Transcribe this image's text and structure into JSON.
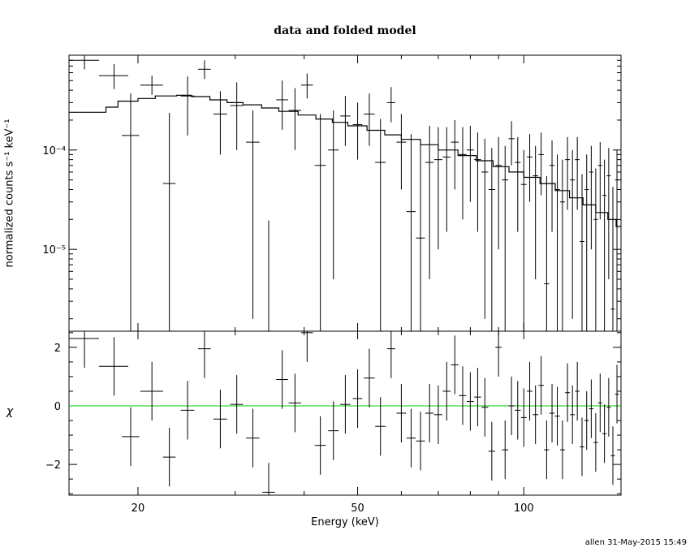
{
  "title": "data and folded model",
  "footer_stamp": "allen 31-May-2015 15:49",
  "chart_data": [
    {
      "type": "scatter",
      "panel": "top",
      "xlabel": "Energy (keV)",
      "ylabel": "normalized counts s⁻¹ keV⁻¹",
      "xscale": "log",
      "yscale": "log",
      "xlim": [
        15,
        150
      ],
      "ylim": [
        1.5e-06,
        0.0009
      ],
      "y_tick_labels": [
        {
          "text": "10⁻⁵",
          "value": 1e-05
        },
        {
          "text": "10⁻⁴",
          "value": 0.0001
        }
      ],
      "data": [
        {
          "e": 16.0,
          "de": 1.0,
          "y": 0.0008,
          "dy_lo": 0.00015,
          "dy_hi": 0.00015
        },
        {
          "e": 18.1,
          "de": 1.1,
          "y": 0.00056,
          "dy_lo": 0.00015,
          "dy_hi": 0.00017
        },
        {
          "e": 19.4,
          "de": 0.7,
          "y": 0.00014,
          "dy_lo": 0.0001385,
          "dy_hi": 0.00023
        },
        {
          "e": 21.2,
          "de": 1.0,
          "y": 0.00045,
          "dy_lo": 9e-05,
          "dy_hi": 0.00011
        },
        {
          "e": 22.8,
          "de": 0.6,
          "y": 4.6e-05,
          "dy_lo": 4.45e-05,
          "dy_hi": 0.00019
        },
        {
          "e": 24.6,
          "de": 0.7,
          "y": 0.00035,
          "dy_lo": 0.00021,
          "dy_hi": 0.0002
        },
        {
          "e": 26.4,
          "de": 0.7,
          "y": 0.00065,
          "dy_lo": 0.00013,
          "dy_hi": 0.00015
        },
        {
          "e": 28.2,
          "de": 0.8,
          "y": 0.00023,
          "dy_lo": 0.00014,
          "dy_hi": 0.00016
        },
        {
          "e": 30.2,
          "de": 0.8,
          "y": 0.00028,
          "dy_lo": 0.00018,
          "dy_hi": 0.0002
        },
        {
          "e": 32.3,
          "de": 0.9,
          "y": 0.00012,
          "dy_lo": 0.000118,
          "dy_hi": 0.00013
        },
        {
          "e": 34.5,
          "de": 0.9,
          "y": 1.5e-06,
          "dy_lo": 0,
          "dy_hi": 1.8e-05
        },
        {
          "e": 36.5,
          "de": 0.9,
          "y": 0.00032,
          "dy_lo": 0.00016,
          "dy_hi": 0.00018
        },
        {
          "e": 38.5,
          "de": 1.0,
          "y": 0.00025,
          "dy_lo": 0.00015,
          "dy_hi": 0.00017
        },
        {
          "e": 40.5,
          "de": 1.0,
          "y": 0.00045,
          "dy_lo": 0.00012,
          "dy_hi": 0.00014
        },
        {
          "e": 42.8,
          "de": 1.0,
          "y": 7e-05,
          "dy_lo": 6.9e-05,
          "dy_hi": 0.00016
        },
        {
          "e": 45.2,
          "de": 1.0,
          "y": 0.0001,
          "dy_lo": 9.5e-05,
          "dy_hi": 0.00015
        },
        {
          "e": 47.5,
          "de": 1.0,
          "y": 0.00022,
          "dy_lo": 0.00011,
          "dy_hi": 0.00013
        },
        {
          "e": 50.0,
          "de": 1.0,
          "y": 0.00018,
          "dy_lo": 0.0001,
          "dy_hi": 0.00012
        },
        {
          "e": 52.5,
          "de": 1.2,
          "y": 0.00023,
          "dy_lo": 0.00012,
          "dy_hi": 0.00014
        },
        {
          "e": 55.0,
          "de": 1.2,
          "y": 7.5e-05,
          "dy_lo": 7.4e-05,
          "dy_hi": 0.00013
        },
        {
          "e": 57.5,
          "de": 1.0,
          "y": 0.0003,
          "dy_lo": 0.00011,
          "dy_hi": 0.00013
        },
        {
          "e": 60.0,
          "de": 1.2,
          "y": 0.00012,
          "dy_lo": 8e-05,
          "dy_hi": 0.00011
        },
        {
          "e": 62.5,
          "de": 1.2,
          "y": 2.4e-05,
          "dy_lo": 2.39e-05,
          "dy_hi": 0.00012
        },
        {
          "e": 65.0,
          "de": 1.2,
          "y": 1.3e-05,
          "dy_lo": 1.29e-05,
          "dy_hi": 0.0001
        },
        {
          "e": 67.5,
          "de": 1.2,
          "y": 7.5e-05,
          "dy_lo": 7e-05,
          "dy_hi": 0.0001
        },
        {
          "e": 70.0,
          "de": 1.2,
          "y": 8e-05,
          "dy_lo": 7e-05,
          "dy_hi": 9e-05
        },
        {
          "e": 72.5,
          "de": 1.2,
          "y": 8.5e-05,
          "dy_lo": 7e-05,
          "dy_hi": 8.5e-05
        },
        {
          "e": 75.0,
          "de": 1.2,
          "y": 0.00012,
          "dy_lo": 8e-05,
          "dy_hi": 8e-05
        },
        {
          "e": 77.5,
          "de": 1.2,
          "y": 9e-05,
          "dy_lo": 7e-05,
          "dy_hi": 8e-05
        },
        {
          "e": 80.0,
          "de": 1.2,
          "y": 0.0001,
          "dy_lo": 7e-05,
          "dy_hi": 7.5e-05
        },
        {
          "e": 82.5,
          "de": 1.2,
          "y": 8e-05,
          "dy_lo": 6.5e-05,
          "dy_hi": 7e-05
        },
        {
          "e": 85.0,
          "de": 1.2,
          "y": 6e-05,
          "dy_lo": 5.8e-05,
          "dy_hi": 7e-05
        },
        {
          "e": 87.5,
          "de": 1.2,
          "y": 4e-05,
          "dy_lo": 3.99e-05,
          "dy_hi": 6.5e-05
        },
        {
          "e": 90.0,
          "de": 1.2,
          "y": 7e-05,
          "dy_lo": 6e-05,
          "dy_hi": 6.5e-05
        },
        {
          "e": 92.5,
          "de": 1.2,
          "y": 5e-05,
          "dy_lo": 4.9e-05,
          "dy_hi": 6e-05
        },
        {
          "e": 95.0,
          "de": 1.2,
          "y": 0.00013,
          "dy_lo": 6e-05,
          "dy_hi": 6.5e-05
        },
        {
          "e": 97.5,
          "de": 1.2,
          "y": 7.5e-05,
          "dy_lo": 6e-05,
          "dy_hi": 6e-05
        },
        {
          "e": 100.0,
          "de": 1.2,
          "y": 4.5e-05,
          "dy_lo": 4.4e-05,
          "dy_hi": 5.5e-05
        },
        {
          "e": 102.5,
          "de": 1.2,
          "y": 8.5e-05,
          "dy_lo": 5.5e-05,
          "dy_hi": 6e-05
        },
        {
          "e": 105.0,
          "de": 1.2,
          "y": 5.5e-05,
          "dy_lo": 5e-05,
          "dy_hi": 5.5e-05
        },
        {
          "e": 107.5,
          "de": 1.2,
          "y": 9e-05,
          "dy_lo": 5.5e-05,
          "dy_hi": 6e-05
        },
        {
          "e": 110.0,
          "de": 1.2,
          "y": 4.5e-06,
          "dy_lo": 0,
          "dy_hi": 5e-05
        },
        {
          "e": 112.5,
          "de": 1.2,
          "y": 7e-05,
          "dy_lo": 5.5e-05,
          "dy_hi": 5.5e-05
        },
        {
          "e": 115.0,
          "de": 1.2,
          "y": 4e-05,
          "dy_lo": 3.9e-05,
          "dy_hi": 5e-05
        },
        {
          "e": 117.5,
          "de": 1.2,
          "y": 3e-05,
          "dy_lo": 2.9e-05,
          "dy_hi": 5e-05
        },
        {
          "e": 120.0,
          "de": 1.2,
          "y": 8e-05,
          "dy_lo": 5.5e-05,
          "dy_hi": 5.5e-05
        },
        {
          "e": 122.5,
          "de": 1.2,
          "y": 5e-05,
          "dy_lo": 4.8e-05,
          "dy_hi": 5e-05
        },
        {
          "e": 125.0,
          "de": 1.2,
          "y": 8e-05,
          "dy_lo": 5.5e-05,
          "dy_hi": 5.5e-05
        },
        {
          "e": 127.5,
          "de": 1.2,
          "y": 1.2e-05,
          "dy_lo": 1.19e-05,
          "dy_hi": 4.5e-05
        },
        {
          "e": 130.0,
          "de": 1.2,
          "y": 4e-05,
          "dy_lo": 3.9e-05,
          "dy_hi": 5e-05
        },
        {
          "e": 132.5,
          "de": 1.2,
          "y": 6e-05,
          "dy_lo": 5e-05,
          "dy_hi": 5e-05
        },
        {
          "e": 135.0,
          "de": 1.2,
          "y": 2e-05,
          "dy_lo": 1.99e-05,
          "dy_hi": 4.5e-05
        },
        {
          "e": 137.5,
          "de": 1.2,
          "y": 7e-05,
          "dy_lo": 5e-05,
          "dy_hi": 5e-05
        },
        {
          "e": 140.0,
          "de": 1.2,
          "y": 3.5e-05,
          "dy_lo": 3.4e-05,
          "dy_hi": 4.5e-05
        },
        {
          "e": 142.5,
          "de": 1.2,
          "y": 5.5e-05,
          "dy_lo": 5e-05,
          "dy_hi": 5e-05
        },
        {
          "e": 145.0,
          "de": 1.2,
          "y": 2.5e-06,
          "dy_lo": 0,
          "dy_hi": 4e-05
        },
        {
          "e": 147.5,
          "de": 1.2,
          "y": 5e-05,
          "dy_lo": 4.9e-05,
          "dy_hi": 5e-05
        }
      ],
      "model_steps": [
        {
          "e": 15.0,
          "y": 0.00024
        },
        {
          "e": 17.0,
          "y": 0.00024
        },
        {
          "e": 17.5,
          "y": 0.00027
        },
        {
          "e": 18.4,
          "y": 0.00031
        },
        {
          "e": 20.0,
          "y": 0.00033
        },
        {
          "e": 21.5,
          "y": 0.00035
        },
        {
          "e": 23.5,
          "y": 0.000355
        },
        {
          "e": 25.0,
          "y": 0.000345
        },
        {
          "e": 27.0,
          "y": 0.00032
        },
        {
          "e": 29.0,
          "y": 0.0003
        },
        {
          "e": 31.0,
          "y": 0.000285
        },
        {
          "e": 33.5,
          "y": 0.000265
        },
        {
          "e": 36.0,
          "y": 0.000245
        },
        {
          "e": 39.0,
          "y": 0.000225
        },
        {
          "e": 42.0,
          "y": 0.000205
        },
        {
          "e": 45.0,
          "y": 0.00019
        },
        {
          "e": 48.0,
          "y": 0.000175
        },
        {
          "e": 52.0,
          "y": 0.000158
        },
        {
          "e": 56.0,
          "y": 0.000142
        },
        {
          "e": 60.0,
          "y": 0.000128
        },
        {
          "e": 65.0,
          "y": 0.000113
        },
        {
          "e": 70.0,
          "y": 0.0001
        },
        {
          "e": 76.0,
          "y": 8.8e-05
        },
        {
          "e": 82.0,
          "y": 7.8e-05
        },
        {
          "e": 88.0,
          "y": 6.8e-05
        },
        {
          "e": 94.0,
          "y": 6e-05
        },
        {
          "e": 100.0,
          "y": 5.3e-05
        },
        {
          "e": 107.0,
          "y": 4.6e-05
        },
        {
          "e": 114.0,
          "y": 3.9e-05
        },
        {
          "e": 121.0,
          "y": 3.3e-05
        },
        {
          "e": 128.0,
          "y": 2.8e-05
        },
        {
          "e": 135.0,
          "y": 2.35e-05
        },
        {
          "e": 142.0,
          "y": 2e-05
        },
        {
          "e": 147.0,
          "y": 1.7e-05
        },
        {
          "e": 150.0,
          "y": 1.7e-05
        }
      ]
    },
    {
      "type": "scatter",
      "panel": "bottom",
      "xlabel": "Energy (keV)",
      "ylabel": "χ",
      "xscale": "log",
      "xlim": [
        15,
        150
      ],
      "ylim": [
        -3.05,
        2.55
      ],
      "y_ticks": [
        -2,
        0,
        2
      ],
      "x_ticks": [
        20,
        50,
        100
      ],
      "reference_line": {
        "y": 0,
        "color": "#00cc00"
      },
      "residuals": [
        2.3,
        1.35,
        -1.05,
        0.5,
        -1.75,
        -0.15,
        1.95,
        -0.45,
        0.05,
        -1.1,
        -2.95,
        0.9,
        0.1,
        2.5,
        -1.35,
        -0.85,
        0.05,
        0.25,
        0.95,
        -0.7,
        1.95,
        -0.25,
        -1.1,
        -1.2,
        -0.25,
        -0.3,
        0.5,
        1.4,
        0.35,
        0.15,
        0.3,
        -0.05,
        -1.55,
        2.0,
        -1.5,
        0.0,
        -0.15,
        -0.4,
        0.5,
        -0.3,
        0.7,
        -1.5,
        -0.25,
        -0.35,
        -1.5,
        0.45,
        -0.3,
        0.5,
        -1.4,
        -0.5,
        -0.1,
        -1.25,
        0.1,
        -0.95,
        -0.05,
        -1.7,
        0.4
      ]
    }
  ]
}
